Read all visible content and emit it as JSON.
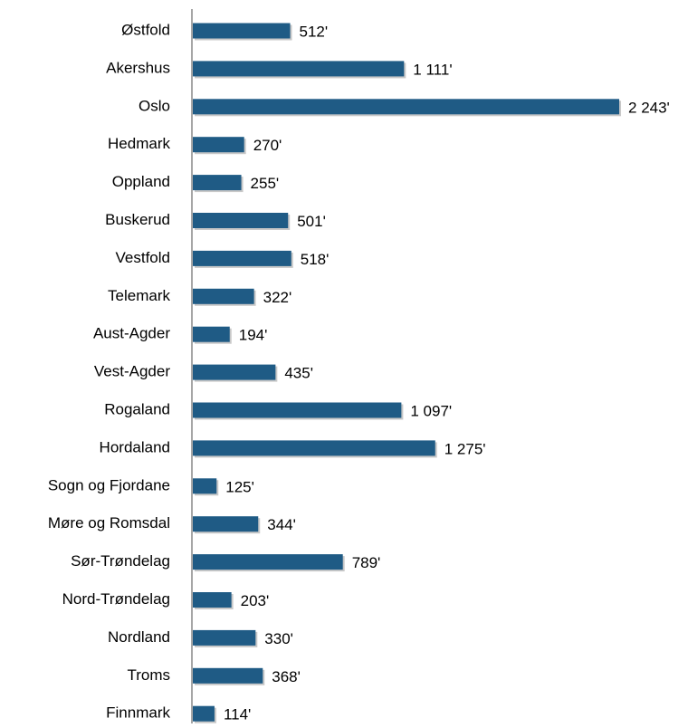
{
  "chart_data": {
    "type": "bar",
    "orientation": "horizontal",
    "categories": [
      "Østfold",
      "Akershus",
      "Oslo",
      "Hedmark",
      "Oppland",
      "Buskerud",
      "Vestfold",
      "Telemark",
      "Aust-Agder",
      "Vest-Agder",
      "Rogaland",
      "Hordaland",
      "Sogn og Fjordane",
      "Møre og Romsdal",
      "Sør-Trøndelag",
      "Nord-Trøndelag",
      "Nordland",
      "Troms",
      "Finnmark"
    ],
    "values": [
      512,
      1111,
      2243,
      270,
      255,
      501,
      518,
      322,
      194,
      435,
      1097,
      1275,
      125,
      344,
      789,
      203,
      330,
      368,
      114
    ],
    "value_labels": [
      "512'",
      "1 111'",
      "2 243'",
      "270'",
      "255'",
      "501'",
      "518'",
      "322'",
      "194'",
      "435'",
      "1 097'",
      "1 275'",
      "125'",
      "344'",
      "789'",
      "203'",
      "330'",
      "368'",
      "114'"
    ],
    "color": "#1f5b85"
  }
}
